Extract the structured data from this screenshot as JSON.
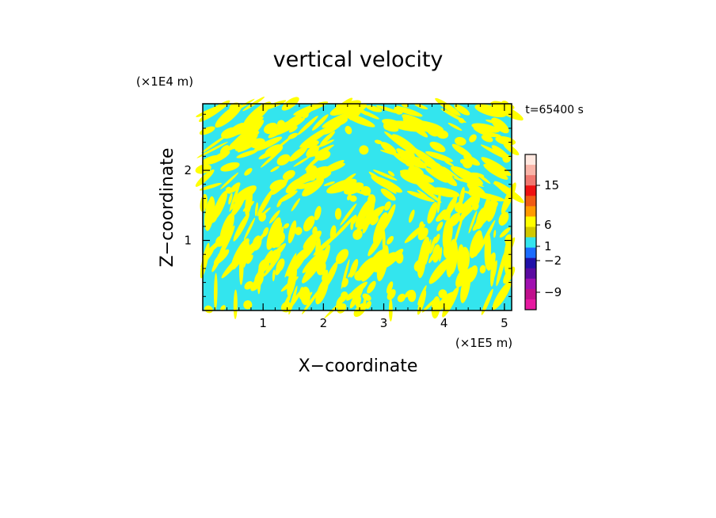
{
  "chart_data": {
    "type": "heatmap",
    "title": "vertical velocity",
    "xlabel": "X−coordinate",
    "ylabel": "Z−coordinate",
    "x_unit": "(×1E5 m)",
    "y_unit": "(×1E4 m)",
    "time_label": "t=65400 s",
    "xlim": [
      0,
      5.12
    ],
    "ylim": [
      0,
      2.95
    ],
    "x_ticks": [
      "1",
      "2",
      "3",
      "4",
      "5"
    ],
    "y_ticks": [
      "1",
      "2"
    ],
    "field_colors": {
      "positive": "#ffff00",
      "negative": "#33e5ee"
    },
    "colorbar": {
      "labels": [
        "15",
        "6",
        "1",
        "−2",
        "−9"
      ],
      "label_values": [
        15,
        6,
        1,
        -2,
        -9
      ],
      "colors": [
        "#ffe8e0",
        "#f9b4a8",
        "#f07870",
        "#ee1111",
        "#f05a14",
        "#ff9a00",
        "#ffff00",
        "#d2c800",
        "#33e5ee",
        "#1a6cff",
        "#2010a8",
        "#5a0aa0",
        "#a010b0",
        "#c0108c",
        "#e61aa0"
      ]
    },
    "grid": false
  }
}
